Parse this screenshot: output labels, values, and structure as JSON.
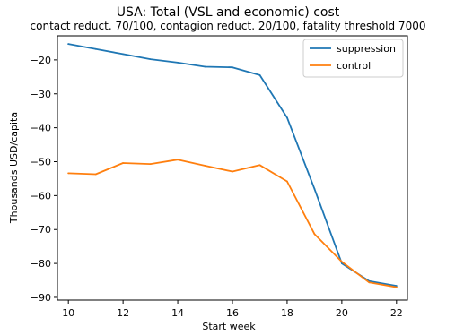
{
  "chart_data": {
    "type": "line",
    "title": "USA: Total (VSL and economic) cost",
    "subtitle": "contact reduct. 70/100, contagion reduct. 20/100, fatality threshold 7000",
    "xlabel": "Start week",
    "ylabel": "Thousands USD/capita",
    "xlim": [
      9.6,
      22.4
    ],
    "ylim": [
      -90.8,
      -12.9
    ],
    "xticks": [
      10,
      12,
      14,
      16,
      18,
      20,
      22
    ],
    "yticks": [
      -90,
      -80,
      -70,
      -60,
      -50,
      -40,
      -30,
      -20
    ],
    "grid": false,
    "legend_position": "upper right",
    "x": [
      10,
      11,
      12,
      13,
      14,
      15,
      16,
      17,
      18,
      19,
      20,
      21,
      22
    ],
    "series": [
      {
        "name": "suppression",
        "color": "#1f77b4",
        "values": [
          -15.3,
          -16.8,
          -18.3,
          -19.8,
          -20.8,
          -22.0,
          -22.2,
          -24.5,
          -37.0,
          -58.0,
          -80.0,
          -85.2,
          -86.6
        ]
      },
      {
        "name": "control",
        "color": "#ff7f0e",
        "values": [
          -53.4,
          -53.7,
          -50.4,
          -50.7,
          -49.4,
          -51.2,
          -52.9,
          -51.0,
          -55.8,
          -71.3,
          -79.5,
          -85.6,
          -87.0
        ]
      }
    ]
  }
}
